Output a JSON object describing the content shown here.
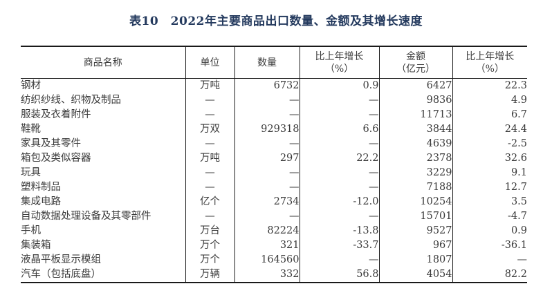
{
  "title": "表10　2022年主要商品出口数量、金额及其增长速度",
  "colors": {
    "title_text": "#243a5e",
    "body_text": "#3a3a3a",
    "border": "#1a1a1a",
    "background": "#ffffff"
  },
  "table": {
    "headers": {
      "product": "商品名称",
      "unit": "单位",
      "quantity": "数量",
      "quantity_growth_line1": "比上年增长",
      "quantity_growth_line2": "（%）",
      "amount_line1": "金额",
      "amount_line2": "（亿元）",
      "amount_growth_line1": "比上年增长",
      "amount_growth_line2": "（%）"
    },
    "rows": [
      {
        "product": "钢材",
        "unit": "万吨",
        "quantity": "6732",
        "quantity_growth": "0.9",
        "amount": "6427",
        "amount_growth": "22.3"
      },
      {
        "product": "纺织纱线、织物及制品",
        "unit": "—",
        "quantity": "—",
        "quantity_growth": "—",
        "amount": "9836",
        "amount_growth": "4.9"
      },
      {
        "product": "服装及衣着附件",
        "unit": "—",
        "quantity": "—",
        "quantity_growth": "—",
        "amount": "11713",
        "amount_growth": "6.7"
      },
      {
        "product": "鞋靴",
        "unit": "万双",
        "quantity": "929318",
        "quantity_growth": "6.6",
        "amount": "3844",
        "amount_growth": "24.4"
      },
      {
        "product": "家具及其零件",
        "unit": "—",
        "quantity": "—",
        "quantity_growth": "—",
        "amount": "4639",
        "amount_growth": "-2.5"
      },
      {
        "product": "箱包及类似容器",
        "unit": "万吨",
        "quantity": "297",
        "quantity_growth": "22.2",
        "amount": "2378",
        "amount_growth": "32.6"
      },
      {
        "product": "玩具",
        "unit": "—",
        "quantity": "—",
        "quantity_growth": "—",
        "amount": "3229",
        "amount_growth": "9.1"
      },
      {
        "product": "塑料制品",
        "unit": "—",
        "quantity": "—",
        "quantity_growth": "—",
        "amount": "7188",
        "amount_growth": "12.7"
      },
      {
        "product": "集成电路",
        "unit": "亿个",
        "quantity": "2734",
        "quantity_growth": "-12.0",
        "amount": "10254",
        "amount_growth": "3.5"
      },
      {
        "product": "自动数据处理设备及其零部件",
        "unit": "—",
        "quantity": "—",
        "quantity_growth": "—",
        "amount": "15701",
        "amount_growth": "-4.7"
      },
      {
        "product": "手机",
        "unit": "万台",
        "quantity": "82224",
        "quantity_growth": "-13.8",
        "amount": "9527",
        "amount_growth": "0.9"
      },
      {
        "product": "集装箱",
        "unit": "万个",
        "quantity": "321",
        "quantity_growth": "-33.7",
        "amount": "967",
        "amount_growth": "-36.1"
      },
      {
        "product": "液晶平板显示模组",
        "unit": "万个",
        "quantity": "164560",
        "quantity_growth": "—",
        "amount": "1807",
        "amount_growth": "—"
      },
      {
        "product": "汽车（包括底盘）",
        "unit": "万辆",
        "quantity": "332",
        "quantity_growth": "56.8",
        "amount": "4054",
        "amount_growth": "82.2"
      }
    ]
  }
}
